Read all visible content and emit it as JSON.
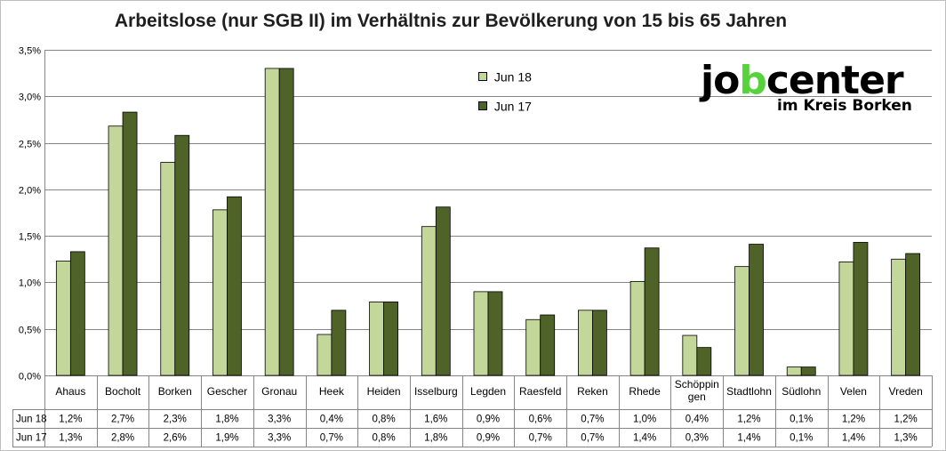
{
  "title": "Arbeitslose (nur SGB II) im Verhältnis zur Bevölkerung von 15 bis 65 Jahren",
  "logo": {
    "part1": "jo",
    "part2": "b",
    "part3": "center",
    "subtitle": "im Kreis Borken",
    "accent_color": "#56d33b"
  },
  "chart_data": {
    "type": "bar",
    "title": "Arbeitslose (nur SGB II) im Verhältnis zur Bevölkerung von 15 bis 65 Jahren",
    "xlabel": "",
    "ylabel": "",
    "ylim": [
      0,
      3.5
    ],
    "yticks": [
      "0,0%",
      "0,5%",
      "1,0%",
      "1,5%",
      "2,0%",
      "2,5%",
      "3,0%",
      "3,5%"
    ],
    "grid": true,
    "legend_position": "top-center",
    "categories": [
      "Ahaus",
      "Bocholt",
      "Borken",
      "Gescher",
      "Gronau",
      "Heek",
      "Heiden",
      "Isselburg",
      "Legden",
      "Raesfeld",
      "Reken",
      "Rhede",
      "Schöppin gen",
      "Stadtlohn",
      "Südlohn",
      "Velen",
      "Vreden"
    ],
    "category_lines": [
      [
        "Ahaus"
      ],
      [
        "Bocholt"
      ],
      [
        "Borken"
      ],
      [
        "Gescher"
      ],
      [
        "Gronau"
      ],
      [
        "Heek"
      ],
      [
        "Heiden"
      ],
      [
        "Isselburg"
      ],
      [
        "Legden"
      ],
      [
        "Raesfeld"
      ],
      [
        "Reken"
      ],
      [
        "Rhede"
      ],
      [
        "Schöppin",
        "gen"
      ],
      [
        "Stadtlohn"
      ],
      [
        "Südlohn"
      ],
      [
        "Velen"
      ],
      [
        "Vreden"
      ]
    ],
    "series": [
      {
        "name": "Jun 18",
        "color": "#c4d79b",
        "values": [
          1.23,
          2.68,
          2.29,
          1.78,
          3.3,
          0.44,
          0.79,
          1.6,
          0.9,
          0.6,
          0.7,
          1.01,
          0.43,
          1.17,
          0.09,
          1.22,
          1.25
        ],
        "labels": [
          "1,2%",
          "2,7%",
          "2,3%",
          "1,8%",
          "3,3%",
          "0,4%",
          "0,8%",
          "1,6%",
          "0,9%",
          "0,6%",
          "0,7%",
          "1,0%",
          "0,4%",
          "1,2%",
          "0,1%",
          "1,2%",
          "1,2%"
        ]
      },
      {
        "name": "Jun 17",
        "color": "#4f6228",
        "values": [
          1.33,
          2.83,
          2.58,
          1.92,
          3.3,
          0.7,
          0.79,
          1.81,
          0.9,
          0.65,
          0.7,
          1.37,
          0.3,
          1.41,
          0.09,
          1.43,
          1.31
        ],
        "labels": [
          "1,3%",
          "2,8%",
          "2,6%",
          "1,9%",
          "3,3%",
          "0,7%",
          "0,8%",
          "1,8%",
          "0,9%",
          "0,7%",
          "0,7%",
          "1,4%",
          "0,3%",
          "1,4%",
          "0,1%",
          "1,4%",
          "1,3%"
        ]
      }
    ]
  }
}
